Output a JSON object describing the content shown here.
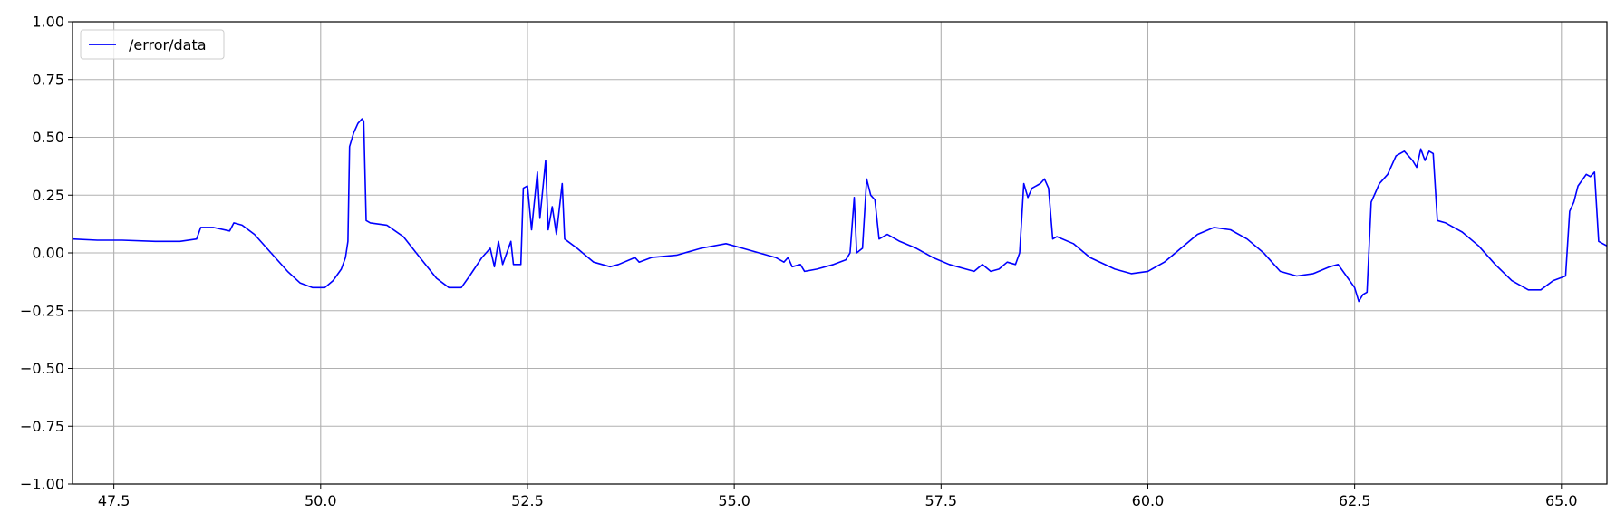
{
  "chart_data": {
    "type": "line",
    "title": "",
    "xlabel": "",
    "ylabel": "",
    "xlim": [
      47.0,
      65.55
    ],
    "ylim": [
      -1.0,
      1.0
    ],
    "grid": true,
    "legend_position": "upper-left",
    "x_ticks": [
      47.5,
      50.0,
      52.5,
      55.0,
      57.5,
      60.0,
      62.5,
      65.0
    ],
    "x_tick_labels": [
      "47.5",
      "50.0",
      "52.5",
      "55.0",
      "57.5",
      "60.0",
      "62.5",
      "65.0"
    ],
    "y_ticks": [
      -1.0,
      -0.75,
      -0.5,
      -0.25,
      0.0,
      0.25,
      0.5,
      0.75,
      1.0
    ],
    "y_tick_labels": [
      "−1.00",
      "−0.75",
      "−0.50",
      "−0.25",
      "0.00",
      "0.25",
      "0.50",
      "0.75",
      "1.00"
    ],
    "series": [
      {
        "name": "/error/data",
        "color": "#0000ff",
        "points": [
          [
            47.0,
            0.06
          ],
          [
            47.3,
            0.055
          ],
          [
            47.6,
            0.055
          ],
          [
            48.0,
            0.05
          ],
          [
            48.3,
            0.05
          ],
          [
            48.5,
            0.06
          ],
          [
            48.55,
            0.11
          ],
          [
            48.7,
            0.11
          ],
          [
            48.9,
            0.095
          ],
          [
            48.95,
            0.13
          ],
          [
            49.05,
            0.12
          ],
          [
            49.2,
            0.08
          ],
          [
            49.4,
            0.0
          ],
          [
            49.6,
            -0.08
          ],
          [
            49.75,
            -0.13
          ],
          [
            49.9,
            -0.15
          ],
          [
            50.05,
            -0.15
          ],
          [
            50.15,
            -0.12
          ],
          [
            50.25,
            -0.07
          ],
          [
            50.3,
            -0.02
          ],
          [
            50.33,
            0.05
          ],
          [
            50.35,
            0.46
          ],
          [
            50.4,
            0.52
          ],
          [
            50.45,
            0.56
          ],
          [
            50.5,
            0.58
          ],
          [
            50.52,
            0.57
          ],
          [
            50.55,
            0.14
          ],
          [
            50.6,
            0.13
          ],
          [
            50.8,
            0.12
          ],
          [
            51.0,
            0.07
          ],
          [
            51.2,
            -0.02
          ],
          [
            51.4,
            -0.11
          ],
          [
            51.55,
            -0.15
          ],
          [
            51.7,
            -0.15
          ],
          [
            51.8,
            -0.1
          ],
          [
            51.95,
            -0.02
          ],
          [
            52.05,
            0.02
          ],
          [
            52.1,
            -0.06
          ],
          [
            52.15,
            0.05
          ],
          [
            52.2,
            -0.05
          ],
          [
            52.3,
            0.05
          ],
          [
            52.33,
            -0.05
          ],
          [
            52.42,
            -0.05
          ],
          [
            52.45,
            0.28
          ],
          [
            52.5,
            0.29
          ],
          [
            52.55,
            0.1
          ],
          [
            52.62,
            0.35
          ],
          [
            52.65,
            0.15
          ],
          [
            52.72,
            0.4
          ],
          [
            52.75,
            0.1
          ],
          [
            52.8,
            0.2
          ],
          [
            52.85,
            0.08
          ],
          [
            52.92,
            0.3
          ],
          [
            52.95,
            0.06
          ],
          [
            53.1,
            0.02
          ],
          [
            53.3,
            -0.04
          ],
          [
            53.5,
            -0.06
          ],
          [
            53.6,
            -0.05
          ],
          [
            53.8,
            -0.02
          ],
          [
            53.85,
            -0.04
          ],
          [
            54.0,
            -0.02
          ],
          [
            54.3,
            -0.01
          ],
          [
            54.6,
            0.02
          ],
          [
            54.9,
            0.04
          ],
          [
            55.1,
            0.02
          ],
          [
            55.3,
            0.0
          ],
          [
            55.5,
            -0.02
          ],
          [
            55.6,
            -0.04
          ],
          [
            55.65,
            -0.02
          ],
          [
            55.7,
            -0.06
          ],
          [
            55.8,
            -0.05
          ],
          [
            55.85,
            -0.08
          ],
          [
            56.0,
            -0.07
          ],
          [
            56.2,
            -0.05
          ],
          [
            56.35,
            -0.03
          ],
          [
            56.4,
            0.0
          ],
          [
            56.45,
            0.24
          ],
          [
            56.48,
            0.0
          ],
          [
            56.55,
            0.02
          ],
          [
            56.6,
            0.32
          ],
          [
            56.65,
            0.25
          ],
          [
            56.7,
            0.23
          ],
          [
            56.75,
            0.06
          ],
          [
            56.85,
            0.08
          ],
          [
            57.0,
            0.05
          ],
          [
            57.2,
            0.02
          ],
          [
            57.4,
            -0.02
          ],
          [
            57.6,
            -0.05
          ],
          [
            57.8,
            -0.07
          ],
          [
            57.9,
            -0.08
          ],
          [
            58.0,
            -0.05
          ],
          [
            58.1,
            -0.08
          ],
          [
            58.2,
            -0.07
          ],
          [
            58.3,
            -0.04
          ],
          [
            58.4,
            -0.05
          ],
          [
            58.45,
            0.0
          ],
          [
            58.5,
            0.3
          ],
          [
            58.55,
            0.24
          ],
          [
            58.6,
            0.28
          ],
          [
            58.7,
            0.3
          ],
          [
            58.75,
            0.32
          ],
          [
            58.8,
            0.28
          ],
          [
            58.85,
            0.06
          ],
          [
            58.9,
            0.07
          ],
          [
            59.1,
            0.04
          ],
          [
            59.3,
            -0.02
          ],
          [
            59.6,
            -0.07
          ],
          [
            59.8,
            -0.09
          ],
          [
            60.0,
            -0.08
          ],
          [
            60.2,
            -0.04
          ],
          [
            60.4,
            0.02
          ],
          [
            60.6,
            0.08
          ],
          [
            60.8,
            0.11
          ],
          [
            61.0,
            0.1
          ],
          [
            61.2,
            0.06
          ],
          [
            61.4,
            0.0
          ],
          [
            61.6,
            -0.08
          ],
          [
            61.8,
            -0.1
          ],
          [
            62.0,
            -0.09
          ],
          [
            62.2,
            -0.06
          ],
          [
            62.3,
            -0.05
          ],
          [
            62.4,
            -0.1
          ],
          [
            62.5,
            -0.15
          ],
          [
            62.55,
            -0.21
          ],
          [
            62.6,
            -0.18
          ],
          [
            62.65,
            -0.17
          ],
          [
            62.7,
            0.22
          ],
          [
            62.8,
            0.3
          ],
          [
            62.9,
            0.34
          ],
          [
            63.0,
            0.42
          ],
          [
            63.1,
            0.44
          ],
          [
            63.2,
            0.4
          ],
          [
            63.25,
            0.37
          ],
          [
            63.3,
            0.45
          ],
          [
            63.35,
            0.4
          ],
          [
            63.4,
            0.44
          ],
          [
            63.45,
            0.43
          ],
          [
            63.5,
            0.14
          ],
          [
            63.6,
            0.13
          ],
          [
            63.8,
            0.09
          ],
          [
            64.0,
            0.03
          ],
          [
            64.2,
            -0.05
          ],
          [
            64.4,
            -0.12
          ],
          [
            64.6,
            -0.16
          ],
          [
            64.75,
            -0.16
          ],
          [
            64.9,
            -0.12
          ],
          [
            65.05,
            -0.1
          ],
          [
            65.1,
            0.18
          ],
          [
            65.15,
            0.22
          ],
          [
            65.2,
            0.29
          ],
          [
            65.3,
            0.34
          ],
          [
            65.35,
            0.33
          ],
          [
            65.4,
            0.35
          ],
          [
            65.45,
            0.05
          ],
          [
            65.5,
            0.04
          ],
          [
            65.55,
            0.03
          ]
        ]
      }
    ]
  }
}
